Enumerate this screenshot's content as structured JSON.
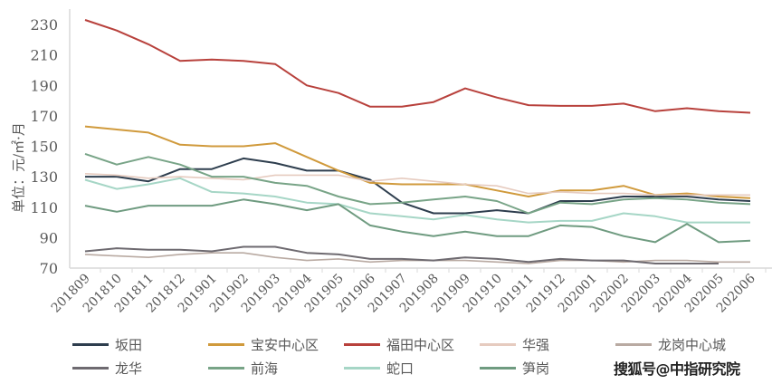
{
  "chart_data": {
    "type": "line",
    "title": "",
    "xlabel": "",
    "ylabel": "单位：元/㎡·月",
    "ylim": [
      70,
      230
    ],
    "yticks": [
      70,
      90,
      110,
      130,
      150,
      170,
      190,
      210,
      230
    ],
    "grid": false,
    "legend_position": "bottom",
    "categories": [
      "201809",
      "201810",
      "201811",
      "201812",
      "201901",
      "201902",
      "201903",
      "201904",
      "201905",
      "201906",
      "201907",
      "201908",
      "201909",
      "201910",
      "201911",
      "201912",
      "202001",
      "202002",
      "202003",
      "202004",
      "202005",
      "202006"
    ],
    "series": [
      {
        "name": "坂田",
        "color": "#2e3e4e",
        "values": [
          130,
          130,
          127,
          135,
          135,
          142,
          139,
          134,
          134,
          128,
          113,
          106,
          106,
          108,
          106,
          114,
          114,
          117,
          117,
          117,
          115,
          114
        ]
      },
      {
        "name": "宝安中心区",
        "color": "#d09a3c",
        "values": [
          163,
          161,
          159,
          151,
          150,
          150,
          152,
          143,
          134,
          126,
          125,
          125,
          125,
          121,
          117,
          121,
          121,
          124,
          118,
          119,
          117,
          116
        ]
      },
      {
        "name": "福田中心区",
        "color": "#b8413c",
        "values": [
          233,
          226,
          217,
          206,
          207,
          206,
          204,
          190,
          185,
          176,
          176,
          179,
          188,
          182,
          177,
          176.5,
          176.5,
          178,
          173,
          175,
          173,
          172
        ]
      },
      {
        "name": "华强",
        "color": "#e6cbbf",
        "values": [
          132,
          131,
          129,
          130,
          129,
          128,
          131,
          131,
          131,
          127,
          129,
          127,
          125,
          124,
          119,
          120,
          119,
          119,
          118,
          118,
          118,
          118
        ]
      },
      {
        "name": "龙岗中心城",
        "color": "#b9aaa2",
        "values": [
          79,
          78,
          77,
          79,
          80,
          80,
          77,
          75,
          76,
          74,
          75,
          75,
          75,
          74,
          73,
          75,
          75,
          74,
          75,
          75,
          74,
          74
        ]
      },
      {
        "name": "龙华",
        "color": "#6e6a70",
        "values": [
          81,
          83,
          82,
          82,
          81,
          84,
          84,
          80,
          79,
          76,
          76,
          75,
          77,
          76,
          74,
          76,
          75,
          75,
          73,
          73,
          73,
          null
        ]
      },
      {
        "name": "前海",
        "color": "#78a487",
        "values": [
          145,
          138,
          143,
          138,
          130,
          130,
          126,
          124,
          117,
          112,
          113,
          115,
          117,
          114,
          106,
          113,
          112,
          115,
          116,
          115,
          113,
          112
        ]
      },
      {
        "name": "蛇口",
        "color": "#a6d6c6",
        "values": [
          128,
          122,
          125,
          129,
          120,
          119,
          117,
          113,
          112,
          106,
          104,
          102,
          105,
          102,
          100,
          101,
          101,
          106,
          104,
          100,
          100,
          100
        ]
      },
      {
        "name": "笋岗",
        "color": "#6f9b80",
        "values": [
          111,
          107,
          111,
          111,
          111,
          115,
          112,
          108,
          112,
          98,
          94,
          91,
          94,
          91,
          91,
          98,
          97,
          91,
          87,
          99,
          87,
          88
        ]
      }
    ]
  },
  "watermark": "搜狐号@中指研究院"
}
